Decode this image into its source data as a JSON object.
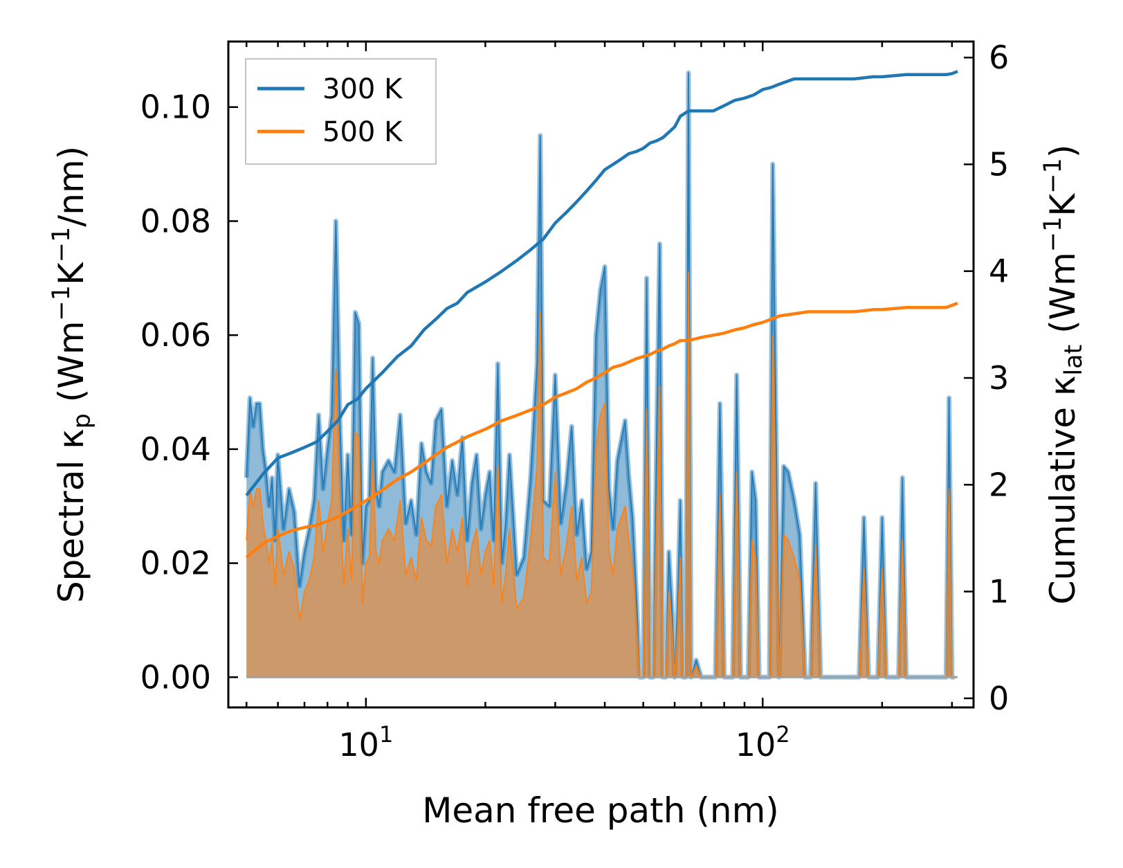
{
  "chart_data": {
    "type": "line",
    "xscale": "log",
    "xlabel": "Mean free path (nm)",
    "ylabel_left": "Spectral κp (Wm⁻¹K⁻¹/nm)",
    "ylabel_left_parts": {
      "lead": "Spectral κ",
      "sub": "p",
      "open": " (Wm",
      "exp1": "−1",
      "mid": "K",
      "exp2": "−1",
      "tail": "/nm)"
    },
    "ylabel_right": "Cumulative κlat (Wm⁻¹K⁻¹)",
    "ylabel_right_parts": {
      "lead": "Cumulative κ",
      "sub": "lat",
      "open": " (Wm",
      "exp1": "−1",
      "mid": "K",
      "exp2": "−1",
      "tail": ")"
    },
    "xlim": [
      4.5,
      340
    ],
    "ylim_left": [
      -0.0053,
      0.1115
    ],
    "ylim_right": [
      -0.085,
      6.15
    ],
    "x_ticks": [
      {
        "value": 10,
        "base": "10",
        "exp": "1"
      },
      {
        "value": 100,
        "base": "10",
        "exp": "2"
      }
    ],
    "y_ticks_left": [
      "0.00",
      "0.02",
      "0.04",
      "0.06",
      "0.08",
      "0.10"
    ],
    "y_ticks_right": [
      "0",
      "1",
      "2",
      "3",
      "4",
      "5",
      "6"
    ],
    "legend": {
      "location": "top-left",
      "entries": [
        "300 K",
        "500 K"
      ]
    },
    "colors": {
      "300K": "#1f77b4",
      "500K": "#ff7f0e",
      "spectral_300_fill": "#1f77b4",
      "spectral_500_fill": "#ff7f0e"
    },
    "spectral_x": [
      5.0,
      5.1,
      5.2,
      5.3,
      5.4,
      5.5,
      5.6,
      5.7,
      5.8,
      5.9,
      6.0,
      6.2,
      6.4,
      6.6,
      6.8,
      7.0,
      7.2,
      7.4,
      7.6,
      7.8,
      8.0,
      8.2,
      8.4,
      8.6,
      8.8,
      9.0,
      9.2,
      9.4,
      9.6,
      9.8,
      10.0,
      10.2,
      10.4,
      10.6,
      10.8,
      11.0,
      11.4,
      11.8,
      12.2,
      12.6,
      13.0,
      13.4,
      13.8,
      14.2,
      14.6,
      15.0,
      15.5,
      16.0,
      16.5,
      17.0,
      17.5,
      18.0,
      18.5,
      19.0,
      19.5,
      20.0,
      20.5,
      21.0,
      21.5,
      22.0,
      22.5,
      23.0,
      24.0,
      25.0,
      26.0,
      27.0,
      27.5,
      28.0,
      29.0,
      30.0,
      31.0,
      32.0,
      33.0,
      34.0,
      35.0,
      36.0,
      37.0,
      38.0,
      39.0,
      40.0,
      41.0,
      42.0,
      43.0,
      45.0,
      46.0,
      47.0,
      48.0,
      49.0,
      50.0,
      51.0,
      52.0,
      53.0,
      54.0,
      55.0,
      56.0,
      57.0,
      58.0,
      59.0,
      60.0,
      61.0,
      62.0,
      63.0,
      64.0,
      65.0,
      66.0,
      68.0,
      70.0,
      72.0,
      74.0,
      76.0,
      78.0,
      80.0,
      82.0,
      84.0,
      86.0,
      88.0,
      90.0,
      92.0,
      94.0,
      96.0,
      98.0,
      100.0,
      102.0,
      104.0,
      106.0,
      110.0,
      113.0,
      116.0,
      120.0,
      124.0,
      128.0,
      132.0,
      136.0,
      140.0,
      150.0,
      160.0,
      170.0,
      175.0,
      180.0,
      185.0,
      190.0,
      195.0,
      200.0,
      205.0,
      210.0,
      215.0,
      220.0,
      225.0,
      230.0,
      240.0,
      260.0,
      280.0,
      290.0,
      295.0,
      300.0,
      305.0,
      310.0
    ],
    "spectral_300": [
      0.035,
      0.049,
      0.044,
      0.048,
      0.048,
      0.04,
      0.036,
      0.03,
      0.035,
      0.024,
      0.039,
      0.026,
      0.033,
      0.029,
      0.016,
      0.022,
      0.026,
      0.031,
      0.046,
      0.033,
      0.04,
      0.046,
      0.08,
      0.045,
      0.024,
      0.039,
      0.025,
      0.064,
      0.062,
      0.02,
      0.03,
      0.031,
      0.056,
      0.033,
      0.03,
      0.036,
      0.038,
      0.036,
      0.046,
      0.027,
      0.031,
      0.025,
      0.041,
      0.036,
      0.034,
      0.045,
      0.047,
      0.03,
      0.038,
      0.032,
      0.042,
      0.024,
      0.034,
      0.039,
      0.026,
      0.032,
      0.036,
      0.024,
      0.055,
      0.02,
      0.027,
      0.039,
      0.018,
      0.021,
      0.035,
      0.055,
      0.095,
      0.031,
      0.03,
      0.053,
      0.027,
      0.034,
      0.044,
      0.025,
      0.031,
      0.019,
      0.022,
      0.06,
      0.068,
      0.072,
      0.033,
      0.026,
      0.038,
      0.045,
      0.035,
      0.028,
      0.015,
      0.0,
      0.0,
      0.07,
      0.0,
      0.0,
      0.04,
      0.076,
      0.0,
      0.0,
      0.022,
      0.013,
      0.0,
      0.012,
      0.031,
      0.0,
      0.0,
      0.106,
      0.0,
      0.003,
      0.0,
      0.0,
      0.0,
      0.0,
      0.048,
      0.0,
      0.0,
      0.0,
      0.053,
      0.0,
      0.0,
      0.0,
      0.036,
      0.031,
      0.0,
      0.0,
      0.0,
      0.0,
      0.09,
      0.0,
      0.037,
      0.036,
      0.031,
      0.025,
      0.0,
      0.0,
      0.034,
      0.0,
      0.0,
      0.0,
      0.0,
      0.0,
      0.028,
      0.0,
      0.0,
      0.0,
      0.028,
      0.0,
      0.0,
      0.0,
      0.0,
      0.035,
      0.0,
      0.0,
      0.0,
      0.0,
      0.0,
      0.049,
      0.0,
      0.0
    ],
    "spectral_500": [
      0.024,
      0.033,
      0.03,
      0.033,
      0.033,
      0.027,
      0.024,
      0.02,
      0.024,
      0.016,
      0.026,
      0.018,
      0.022,
      0.019,
      0.01,
      0.015,
      0.017,
      0.021,
      0.031,
      0.022,
      0.027,
      0.031,
      0.054,
      0.03,
      0.016,
      0.026,
      0.017,
      0.043,
      0.042,
      0.013,
      0.02,
      0.021,
      0.038,
      0.022,
      0.02,
      0.024,
      0.026,
      0.024,
      0.031,
      0.018,
      0.021,
      0.017,
      0.028,
      0.024,
      0.023,
      0.03,
      0.032,
      0.02,
      0.026,
      0.022,
      0.028,
      0.016,
      0.023,
      0.026,
      0.018,
      0.022,
      0.024,
      0.016,
      0.037,
      0.013,
      0.018,
      0.026,
      0.012,
      0.014,
      0.024,
      0.037,
      0.064,
      0.021,
      0.02,
      0.036,
      0.018,
      0.023,
      0.03,
      0.017,
      0.021,
      0.013,
      0.015,
      0.04,
      0.046,
      0.048,
      0.022,
      0.018,
      0.026,
      0.03,
      0.024,
      0.019,
      0.01,
      0.0,
      0.0,
      0.047,
      0.0,
      0.0,
      0.027,
      0.051,
      0.0,
      0.0,
      0.015,
      0.009,
      0.0,
      0.008,
      0.021,
      0.0,
      0.0,
      0.071,
      0.0,
      0.002,
      0.0,
      0.0,
      0.0,
      0.0,
      0.032,
      0.0,
      0.0,
      0.0,
      0.036,
      0.0,
      0.0,
      0.0,
      0.024,
      0.021,
      0.0,
      0.0,
      0.0,
      0.0,
      0.06,
      0.0,
      0.025,
      0.024,
      0.021,
      0.017,
      0.0,
      0.0,
      0.023,
      0.0,
      0.0,
      0.0,
      0.0,
      0.0,
      0.019,
      0.0,
      0.0,
      0.0,
      0.019,
      0.0,
      0.0,
      0.0,
      0.0,
      0.024,
      0.0,
      0.0,
      0.0,
      0.0,
      0.0,
      0.033,
      0.0,
      0.0
    ],
    "cumulative_x": [
      5.0,
      5.5,
      6.0,
      6.5,
      7.0,
      7.5,
      8.0,
      8.5,
      9.0,
      9.5,
      10.0,
      11.0,
      12.0,
      13.0,
      14.0,
      15.0,
      16.0,
      17.0,
      18.0,
      20.0,
      22.0,
      24.0,
      26.0,
      28.0,
      30.0,
      32.0,
      34.0,
      36.0,
      38.0,
      40.0,
      42.0,
      44.0,
      46.0,
      48.0,
      50.0,
      52.0,
      54.0,
      56.0,
      58.0,
      60.0,
      62.0,
      65.0,
      70.0,
      75.0,
      80.0,
      85.0,
      90.0,
      95.0,
      100.0,
      105.0,
      110.0,
      120.0,
      130.0,
      150.0,
      170.0,
      190.0,
      200.0,
      230.0,
      260.0,
      290.0,
      300.0,
      310.0
    ],
    "cumulative_300": [
      1.9,
      2.1,
      2.25,
      2.3,
      2.35,
      2.4,
      2.5,
      2.6,
      2.75,
      2.8,
      2.9,
      3.05,
      3.2,
      3.3,
      3.45,
      3.55,
      3.65,
      3.7,
      3.8,
      3.9,
      4.0,
      4.1,
      4.2,
      4.3,
      4.45,
      4.55,
      4.65,
      4.75,
      4.85,
      4.95,
      5.0,
      5.05,
      5.1,
      5.12,
      5.15,
      5.2,
      5.22,
      5.25,
      5.3,
      5.35,
      5.45,
      5.5,
      5.5,
      5.5,
      5.55,
      5.6,
      5.62,
      5.65,
      5.7,
      5.72,
      5.75,
      5.8,
      5.8,
      5.8,
      5.8,
      5.82,
      5.82,
      5.84,
      5.84,
      5.84,
      5.85,
      5.87
    ],
    "cumulative_500": [
      1.32,
      1.45,
      1.52,
      1.57,
      1.6,
      1.62,
      1.66,
      1.7,
      1.75,
      1.8,
      1.85,
      1.95,
      2.05,
      2.12,
      2.2,
      2.28,
      2.35,
      2.4,
      2.45,
      2.52,
      2.6,
      2.65,
      2.7,
      2.75,
      2.82,
      2.86,
      2.9,
      2.96,
      3.0,
      3.05,
      3.1,
      3.12,
      3.15,
      3.18,
      3.2,
      3.22,
      3.25,
      3.27,
      3.3,
      3.32,
      3.35,
      3.35,
      3.38,
      3.4,
      3.42,
      3.45,
      3.47,
      3.5,
      3.52,
      3.55,
      3.58,
      3.6,
      3.62,
      3.62,
      3.62,
      3.64,
      3.64,
      3.66,
      3.66,
      3.66,
      3.68,
      3.7
    ]
  }
}
